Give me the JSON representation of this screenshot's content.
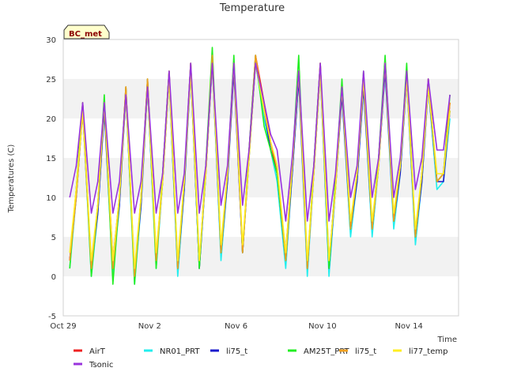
{
  "chart_data": {
    "type": "line",
    "title": "Temperature",
    "xlabel": "Time",
    "ylabel": "Temperatures (C)",
    "badge": "BC_met",
    "ylim": [
      -5,
      30
    ],
    "yticks": [
      -5,
      0,
      5,
      10,
      15,
      20,
      25,
      30
    ],
    "xlim": [
      0,
      18.3
    ],
    "xticks": [
      {
        "value": 0,
        "label": "Oct 29"
      },
      {
        "value": 4,
        "label": "Nov 2"
      },
      {
        "value": 8,
        "label": "Nov 6"
      },
      {
        "value": 12,
        "label": "Nov 10"
      },
      {
        "value": 16,
        "label": "Nov 14"
      }
    ],
    "grid_bands": true,
    "legend_position": "bottom",
    "series": [
      {
        "name": "AirT",
        "color": "#ee2020",
        "x": [
          0.3,
          0.6,
          0.9,
          1.3,
          1.6,
          1.9,
          2.3,
          2.6,
          2.9,
          3.3,
          3.6,
          3.9,
          4.3,
          4.6,
          4.9,
          5.3,
          5.6,
          5.9,
          6.3,
          6.6,
          6.9,
          7.3,
          7.6,
          7.9,
          8.3,
          8.6,
          8.9,
          9.3,
          9.6,
          9.9,
          10.3,
          10.6,
          10.9,
          11.3,
          11.6,
          11.9,
          12.3,
          12.6,
          12.9,
          13.3,
          13.6,
          13.9,
          14.3,
          14.6,
          14.9,
          15.3,
          15.6,
          15.9,
          16.3,
          16.6,
          16.9,
          17.3,
          17.6,
          17.9
        ],
        "y": [
          2,
          11,
          22,
          1,
          9,
          22,
          2,
          10,
          24,
          0,
          10,
          25,
          2,
          13,
          26,
          1,
          12,
          27,
          1,
          14,
          28,
          3,
          13,
          27,
          3,
          16,
          28,
          22,
          17,
          13,
          3,
          14,
          26,
          1,
          14,
          27,
          1,
          12,
          24,
          6,
          13,
          25,
          6,
          15,
          27,
          7,
          14,
          26,
          5,
          13,
          25,
          12,
          13,
          22
        ]
      },
      {
        "name": "NR01_PRT",
        "color": "#22eeee",
        "x": [
          0.3,
          0.6,
          0.9,
          1.3,
          1.6,
          1.9,
          2.3,
          2.6,
          2.9,
          3.3,
          3.6,
          3.9,
          4.3,
          4.6,
          4.9,
          5.3,
          5.6,
          5.9,
          6.3,
          6.6,
          6.9,
          7.3,
          7.6,
          7.9,
          8.3,
          8.6,
          8.9,
          9.3,
          9.6,
          9.9,
          10.3,
          10.6,
          10.9,
          11.3,
          11.6,
          11.9,
          12.3,
          12.6,
          12.9,
          13.3,
          13.6,
          13.9,
          14.3,
          14.6,
          14.9,
          15.3,
          15.6,
          15.9,
          16.3,
          16.6,
          16.9,
          17.3,
          17.6,
          17.9
        ],
        "y": [
          1,
          10,
          21,
          0,
          8,
          21,
          0,
          9,
          23,
          -1,
          9,
          24,
          1,
          12,
          25,
          0,
          11,
          26,
          1,
          13,
          27,
          2,
          12,
          27,
          3,
          15,
          27,
          20,
          16,
          12,
          1,
          13,
          25,
          0,
          13,
          26,
          0,
          11,
          23,
          5,
          12,
          24,
          5,
          14,
          26,
          6,
          13,
          25,
          4,
          12,
          24,
          11,
          12,
          20
        ]
      },
      {
        "name": "li75_t",
        "color": "#1a1acc",
        "x": [
          0.3,
          0.6,
          0.9,
          1.3,
          1.6,
          1.9,
          2.3,
          2.6,
          2.9,
          3.3,
          3.6,
          3.9,
          4.3,
          4.6,
          4.9,
          5.3,
          5.6,
          5.9,
          6.3,
          6.6,
          6.9,
          7.3,
          7.6,
          7.9,
          8.3,
          8.6,
          8.9,
          9.3,
          9.6,
          9.9,
          10.3,
          10.6,
          10.9,
          11.3,
          11.6,
          11.9,
          12.3,
          12.6,
          12.9,
          13.3,
          13.6,
          13.9,
          14.3,
          14.6,
          14.9,
          15.3,
          15.6,
          15.9,
          16.3,
          16.6,
          16.9,
          17.3,
          17.6,
          17.9
        ],
        "y": [
          2,
          10,
          21,
          1,
          8,
          21,
          1,
          9,
          23,
          0,
          9,
          24,
          2,
          12,
          25,
          1,
          11,
          26,
          1,
          13,
          27,
          3,
          12,
          26,
          3,
          15,
          27,
          21,
          16,
          13,
          2,
          13,
          25,
          1,
          13,
          26,
          1,
          11,
          23,
          6,
          12,
          24,
          6,
          14,
          26,
          7,
          13,
          25,
          5,
          12,
          24,
          12,
          12,
          21
        ]
      },
      {
        "name": "AM25T_PRT",
        "color": "#22ee22",
        "x": [
          0.3,
          0.6,
          0.9,
          1.3,
          1.6,
          1.9,
          2.3,
          2.6,
          2.9,
          3.3,
          3.6,
          3.9,
          4.3,
          4.6,
          4.9,
          5.3,
          5.6,
          5.9,
          6.3,
          6.6,
          6.9,
          7.3,
          7.6,
          7.9,
          8.3,
          8.6,
          8.9,
          9.3,
          9.6,
          9.9,
          10.3,
          10.6,
          10.9,
          11.3,
          11.6,
          11.9,
          12.3,
          12.6,
          12.9,
          13.3,
          13.6,
          13.9,
          14.3,
          14.6,
          14.9,
          15.3,
          15.6,
          15.9,
          16.3,
          16.6,
          16.9,
          17.3,
          17.6,
          17.9
        ],
        "y": [
          1,
          11,
          22,
          0,
          9,
          23,
          -1,
          10,
          24,
          -1,
          10,
          25,
          1,
          13,
          26,
          1,
          12,
          27,
          1,
          14,
          29,
          3,
          13,
          28,
          3,
          16,
          28,
          19,
          16,
          13,
          2,
          14,
          28,
          1,
          14,
          27,
          1,
          12,
          25,
          6,
          13,
          26,
          6,
          15,
          28,
          7,
          14,
          27,
          5,
          13,
          25,
          12,
          13,
          23
        ]
      },
      {
        "name": "li75_t",
        "color": "#f0a020",
        "x": [
          0.3,
          0.6,
          0.9,
          1.3,
          1.6,
          1.9,
          2.3,
          2.6,
          2.9,
          3.3,
          3.6,
          3.9,
          4.3,
          4.6,
          4.9,
          5.3,
          5.6,
          5.9,
          6.3,
          6.6,
          6.9,
          7.3,
          7.6,
          7.9,
          8.3,
          8.6,
          8.9,
          9.3,
          9.6,
          9.9,
          10.3,
          10.6,
          10.9,
          11.3,
          11.6,
          11.9,
          12.3,
          12.6,
          12.9,
          13.3,
          13.6,
          13.9,
          14.3,
          14.6,
          14.9,
          15.3,
          15.6,
          15.9,
          16.3,
          16.6,
          16.9,
          17.3,
          17.6,
          17.9
        ],
        "y": [
          2,
          10,
          21,
          1,
          9,
          22,
          1,
          10,
          24,
          0,
          10,
          25,
          2,
          12,
          26,
          1,
          12,
          27,
          2,
          13,
          28,
          3,
          13,
          27,
          3,
          15,
          28,
          21,
          17,
          14,
          2,
          14,
          26,
          1,
          13,
          27,
          2,
          11,
          24,
          6,
          13,
          25,
          6,
          14,
          27,
          7,
          14,
          26,
          5,
          13,
          25,
          12,
          13,
          22
        ]
      },
      {
        "name": "li77_temp",
        "color": "#ffee22",
        "x": [
          0.3,
          0.6,
          0.9,
          1.3,
          1.6,
          1.9,
          2.3,
          2.6,
          2.9,
          3.3,
          3.6,
          3.9,
          4.3,
          4.6,
          4.9,
          5.3,
          5.6,
          5.9,
          6.3,
          6.6,
          6.9,
          7.3,
          7.6,
          7.9,
          8.3,
          8.6,
          8.9,
          9.3,
          9.6,
          9.9,
          10.3,
          10.6,
          10.9,
          11.3,
          11.6,
          11.9,
          12.3,
          12.6,
          12.9,
          13.3,
          13.6,
          13.9,
          14.3,
          14.6,
          14.9,
          15.3,
          15.6,
          15.9,
          16.3,
          16.6,
          16.9,
          17.3,
          17.6,
          17.9
        ],
        "y": [
          3,
          11,
          21,
          2,
          9,
          22,
          2,
          10,
          23,
          1,
          10,
          24,
          3,
          12,
          25,
          2,
          12,
          26,
          2,
          13,
          27,
          4,
          13,
          27,
          4,
          15,
          27,
          21,
          17,
          14,
          3,
          14,
          26,
          2,
          13,
          26,
          2,
          11,
          24,
          7,
          13,
          25,
          7,
          14,
          27,
          8,
          14,
          25,
          6,
          13,
          24,
          13,
          13,
          21
        ]
      },
      {
        "name": "Tsonic",
        "color": "#9933dd",
        "x": [
          0.3,
          0.6,
          0.9,
          1.3,
          1.6,
          1.9,
          2.3,
          2.6,
          2.9,
          3.3,
          3.6,
          3.9,
          4.3,
          4.6,
          4.9,
          5.3,
          5.6,
          5.9,
          6.3,
          6.6,
          6.9,
          7.3,
          7.6,
          7.9,
          8.3,
          8.6,
          8.9,
          9.3,
          9.6,
          9.9,
          10.3,
          10.6,
          10.9,
          11.3,
          11.6,
          11.9,
          12.3,
          12.6,
          12.9,
          13.3,
          13.6,
          13.9,
          14.3,
          14.6,
          14.9,
          15.3,
          15.6,
          15.9,
          16.3,
          16.6,
          16.9,
          17.3,
          17.6,
          17.9
        ],
        "y": [
          10,
          14,
          22,
          8,
          12,
          22,
          8,
          12,
          23,
          8,
          12,
          24,
          8,
          13,
          26,
          8,
          13,
          27,
          8,
          14,
          27,
          9,
          14,
          27,
          9,
          16,
          27,
          22,
          18,
          16,
          7,
          15,
          26,
          7,
          14,
          27,
          7,
          13,
          24,
          10,
          14,
          26,
          10,
          15,
          27,
          10,
          15,
          26,
          11,
          15,
          25,
          16,
          16,
          23
        ]
      }
    ]
  }
}
